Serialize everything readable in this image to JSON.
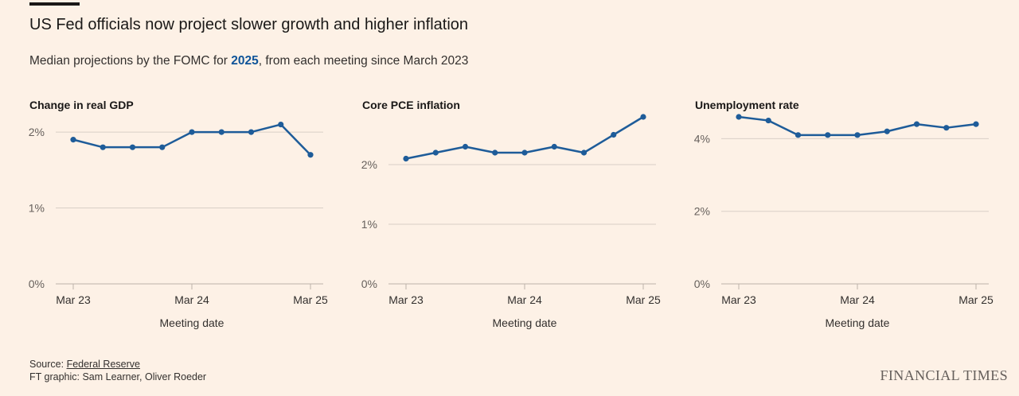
{
  "header": {
    "title": "US Fed officials now project slower growth and higher inflation",
    "subtitle_before": "Median projections by the FOMC for ",
    "subtitle_highlight": "2025",
    "subtitle_after": ", from each meeting since March 2023"
  },
  "colors": {
    "line": "#1e5c99",
    "grid": "#d9cfc7",
    "axis": "#bdb3aa",
    "highlight": "#0f5499"
  },
  "chart_data": [
    {
      "type": "line",
      "title": "Change in real GDP",
      "xlabel": "Meeting date",
      "x_ticks": [
        "Mar 23",
        "Mar 24",
        "Mar 25"
      ],
      "x_tick_indices": [
        0,
        4,
        8
      ],
      "y_ticks": [
        "0%",
        "1%",
        "2%"
      ],
      "y_tick_values": [
        0,
        1,
        2
      ],
      "ylim": [
        0,
        2.2
      ],
      "values": [
        1.9,
        1.8,
        1.8,
        1.8,
        2.0,
        2.0,
        2.0,
        2.1,
        1.7
      ]
    },
    {
      "type": "line",
      "title": "Core PCE inflation",
      "xlabel": "Meeting date",
      "x_ticks": [
        "Mar 23",
        "Mar 24",
        "Mar 25"
      ],
      "x_tick_indices": [
        0,
        4,
        8
      ],
      "y_ticks": [
        "0%",
        "1%",
        "2%"
      ],
      "y_tick_values": [
        0,
        1,
        2
      ],
      "ylim": [
        0,
        2.8
      ],
      "values": [
        2.1,
        2.2,
        2.3,
        2.2,
        2.2,
        2.3,
        2.2,
        2.5,
        2.8
      ]
    },
    {
      "type": "line",
      "title": "Unemployment rate",
      "xlabel": "Meeting date",
      "x_ticks": [
        "Mar 23",
        "Mar 24",
        "Mar 25"
      ],
      "x_tick_indices": [
        0,
        4,
        8
      ],
      "y_ticks": [
        "0%",
        "2%",
        "4%"
      ],
      "y_tick_values": [
        0,
        2,
        4
      ],
      "ylim": [
        0,
        4.6
      ],
      "values": [
        4.6,
        4.5,
        4.1,
        4.1,
        4.1,
        4.2,
        4.4,
        4.3,
        4.4
      ]
    }
  ],
  "footer": {
    "source_prefix": "Source: ",
    "source_link": "Federal Reserve",
    "credit": "FT graphic: Sam Learner, Oliver Roeder"
  },
  "logo": "FINANCIAL TIMES"
}
